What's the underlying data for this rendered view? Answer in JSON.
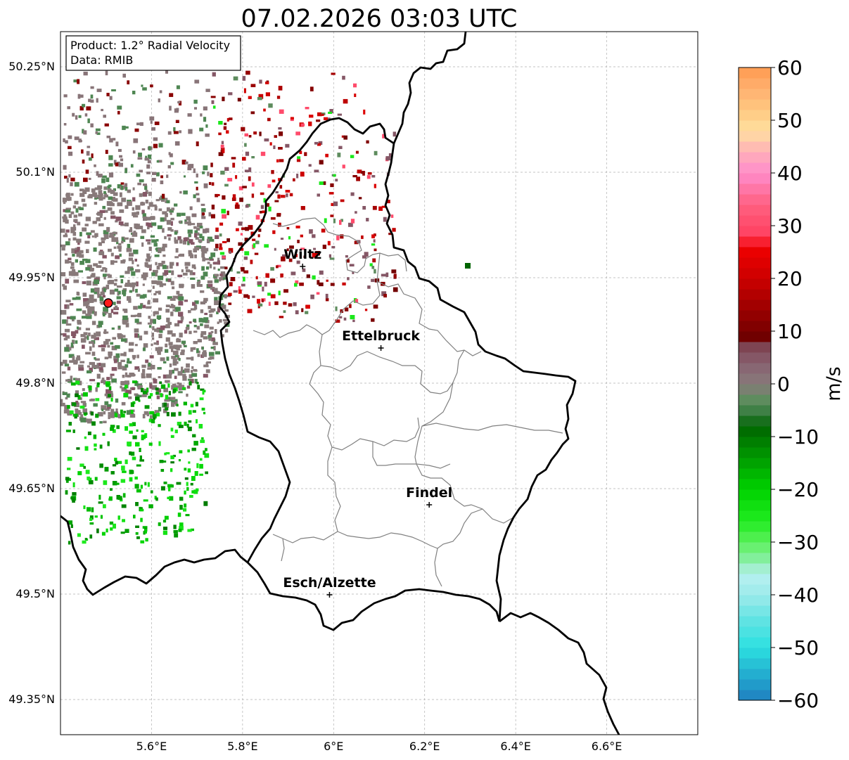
{
  "title": "07.02.2026 03:03 UTC",
  "product_box": {
    "product": "Product: 1.2° Radial Velocity",
    "data": "Data: RMIB"
  },
  "map": {
    "lon_range": [
      5.4,
      6.8
    ],
    "lat_range": [
      49.3,
      50.3
    ],
    "lon_ticks": [
      {
        "value": 5.6,
        "label": "5.6°E"
      },
      {
        "value": 5.8,
        "label": "5.8°E"
      },
      {
        "value": 6.0,
        "label": "6°E"
      },
      {
        "value": 6.2,
        "label": "6.2°E"
      },
      {
        "value": 6.4,
        "label": "6.4°E"
      },
      {
        "value": 6.6,
        "label": "6.6°E"
      }
    ],
    "lat_ticks": [
      {
        "value": 49.35,
        "label": "49.35°N"
      },
      {
        "value": 49.5,
        "label": "49.5°N"
      },
      {
        "value": 49.65,
        "label": "49.65°N"
      },
      {
        "value": 49.8,
        "label": "49.8°N"
      },
      {
        "value": 49.95,
        "label": "49.95°N"
      },
      {
        "value": 50.1,
        "label": "50.1°N"
      },
      {
        "value": 50.25,
        "label": "50.25°N"
      }
    ],
    "radar_site": {
      "lon": 5.505,
      "lat": 49.914
    },
    "cities": [
      {
        "name": "Wiltz",
        "lon": 5.932,
        "lat": 49.966
      },
      {
        "name": "Ettelbruck",
        "lon": 6.104,
        "lat": 49.85
      },
      {
        "name": "Findel",
        "lon": 6.21,
        "lat": 49.627
      },
      {
        "name": "Esch/Alzette",
        "lon": 5.991,
        "lat": 49.499
      }
    ]
  },
  "colorbar": {
    "label": "m/s",
    "vmin": -60,
    "vmax": 60,
    "ticks": [
      {
        "value": 60,
        "label": "60"
      },
      {
        "value": 50,
        "label": "50"
      },
      {
        "value": 40,
        "label": "40"
      },
      {
        "value": 30,
        "label": "30"
      },
      {
        "value": 20,
        "label": "20"
      },
      {
        "value": 10,
        "label": "10"
      },
      {
        "value": 0,
        "label": "0"
      },
      {
        "value": -10,
        "label": "−10"
      },
      {
        "value": -20,
        "label": "−20"
      },
      {
        "value": -30,
        "label": "−30"
      },
      {
        "value": -40,
        "label": "−40"
      },
      {
        "value": -50,
        "label": "−50"
      },
      {
        "value": -60,
        "label": "−60"
      }
    ],
    "stops": [
      {
        "v": -60,
        "c": "#1f7ec0"
      },
      {
        "v": -55,
        "c": "#23aed0"
      },
      {
        "v": -50,
        "c": "#2ce0e0"
      },
      {
        "v": -45,
        "c": "#5fe3e3"
      },
      {
        "v": -40,
        "c": "#9ceaea"
      },
      {
        "v": -36,
        "c": "#b8f0f0"
      },
      {
        "v": -34,
        "c": "#8eeeb0"
      },
      {
        "v": -30,
        "c": "#5cf05c"
      },
      {
        "v": -26,
        "c": "#20ec20"
      },
      {
        "v": -20,
        "c": "#00d200"
      },
      {
        "v": -14,
        "c": "#009a00"
      },
      {
        "v": -8,
        "c": "#006400"
      },
      {
        "v": -6,
        "c": "#2f7a3a"
      },
      {
        "v": -3,
        "c": "#5e8c5e"
      },
      {
        "v": 0,
        "c": "#887a7a"
      },
      {
        "v": 4,
        "c": "#886070"
      },
      {
        "v": 8,
        "c": "#7a3a48"
      },
      {
        "v": 9,
        "c": "#700000"
      },
      {
        "v": 14,
        "c": "#9a0000"
      },
      {
        "v": 20,
        "c": "#cc0000"
      },
      {
        "v": 26,
        "c": "#f00000"
      },
      {
        "v": 28,
        "c": "#ff4060"
      },
      {
        "v": 34,
        "c": "#ff6080"
      },
      {
        "v": 40,
        "c": "#ff8ccc"
      },
      {
        "v": 44,
        "c": "#ffb0b8"
      },
      {
        "v": 48,
        "c": "#ffe0a0"
      },
      {
        "v": 52,
        "c": "#ffc880"
      },
      {
        "v": 56,
        "c": "#ffb070"
      },
      {
        "v": 60,
        "c": "#ff9a50"
      }
    ]
  }
}
